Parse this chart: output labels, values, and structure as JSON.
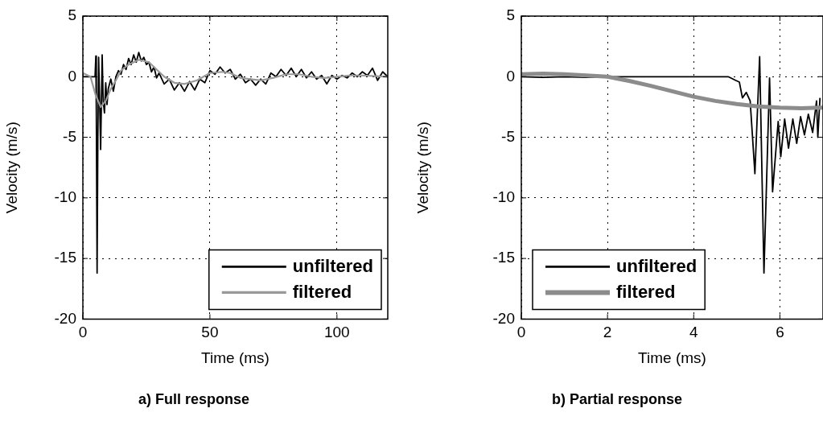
{
  "chart_data": [
    {
      "type": "line",
      "title": "a) Full response",
      "xlabel": "Time (ms)",
      "ylabel": "Velocity (m/s)",
      "xlim": [
        0,
        120
      ],
      "xticks": [
        0,
        50,
        100
      ],
      "ylim": [
        -20,
        5
      ],
      "yticks": [
        -20,
        -15,
        -10,
        -5,
        0,
        5
      ],
      "grid": true,
      "legend": "bottom right",
      "series": [
        {
          "name": "unfiltered",
          "color": "#000000",
          "x": [
            0,
            2,
            4.8,
            5.1,
            5.3,
            5.6,
            5.9,
            6.2,
            6.6,
            7,
            7.6,
            8,
            8.5,
            9,
            9.5,
            10,
            11,
            12,
            13,
            14,
            15,
            16,
            17,
            18,
            19,
            20,
            21,
            22,
            23,
            24,
            25,
            26,
            27,
            28,
            29,
            30,
            32,
            34,
            36,
            38,
            40,
            42,
            44,
            46,
            48,
            50,
            52,
            54,
            56,
            58,
            60,
            62,
            64,
            66,
            68,
            70,
            72,
            74,
            76,
            78,
            80,
            82,
            84,
            86,
            88,
            90,
            92,
            94,
            96,
            98,
            100,
            102,
            104,
            106,
            108,
            110,
            112,
            114,
            116,
            118,
            120
          ],
          "values": [
            0,
            0,
            0,
            1.7,
            -3,
            -16.2,
            -5,
            1.6,
            -2,
            -6,
            1.8,
            -2,
            -3,
            -0.5,
            -2.3,
            -1,
            -0.2,
            -1.2,
            0,
            0.5,
            0.2,
            1,
            0.6,
            1.5,
            1,
            1.8,
            1.2,
            2,
            1.3,
            1.6,
            1,
            1.2,
            0.4,
            0.8,
            -0.1,
            0.3,
            -0.6,
            -0.2,
            -1.1,
            -0.5,
            -1.2,
            -0.4,
            -1.1,
            -0.2,
            -0.5,
            0.5,
            0.2,
            0.8,
            0.3,
            0.6,
            -0.2,
            0.2,
            -0.5,
            -0.2,
            -0.7,
            -0.2,
            -0.6,
            0.3,
            0,
            0.6,
            0.1,
            0.7,
            0,
            0.6,
            -0.1,
            0.4,
            -0.2,
            0.1,
            -0.6,
            0.1,
            -0.2,
            0.1,
            -0.1,
            0.3,
            0,
            0.4,
            0.1,
            0.7,
            -0.3,
            0.4,
            0
          ]
        },
        {
          "name": "filtered",
          "color": "#999999",
          "x": [
            0,
            3,
            5,
            7,
            9,
            11,
            13,
            15,
            18,
            22,
            26,
            29,
            32,
            36,
            40,
            45,
            50,
            55,
            58,
            62,
            66,
            70,
            75,
            80,
            85,
            90,
            95,
            100,
            105,
            110,
            120
          ],
          "values": [
            0.3,
            0,
            -1.5,
            -2.5,
            -2,
            -1,
            -0.3,
            0.5,
            1,
            1.4,
            1.2,
            0.6,
            0,
            -0.5,
            -0.6,
            -0.3,
            0.3,
            0.4,
            0.3,
            -0.1,
            -0.2,
            -0.3,
            -0.1,
            0.2,
            0.2,
            0,
            -0.1,
            0,
            0.1,
            0.1,
            0
          ]
        }
      ]
    },
    {
      "type": "line",
      "title": "b) Partial response",
      "xlabel": "Time (ms)",
      "ylabel": "Velocity (m/s)",
      "xlim": [
        0,
        7
      ],
      "xticks": [
        0,
        2,
        4,
        6
      ],
      "ylim": [
        -20,
        5
      ],
      "yticks": [
        -20,
        -15,
        -10,
        -5,
        0,
        5
      ],
      "grid": true,
      "legend": "bottom left",
      "series": [
        {
          "name": "unfiltered",
          "color": "#000000",
          "x": [
            0,
            0.5,
            1,
            1.5,
            2,
            2.5,
            3,
            3.5,
            4,
            4.5,
            4.8,
            4.97,
            5.06,
            5.13,
            5.22,
            5.31,
            5.42,
            5.53,
            5.63,
            5.76,
            5.83,
            5.96,
            6.02,
            6.11,
            6.2,
            6.3,
            6.39,
            6.48,
            6.57,
            6.66,
            6.76,
            6.85,
            6.88,
            6.93
          ],
          "values": [
            0,
            -0.05,
            0,
            -0.05,
            0,
            0,
            0,
            0,
            0,
            0,
            0,
            -0.3,
            -0.45,
            -1.75,
            -1.3,
            -2,
            -8,
            1.65,
            -16.2,
            -0.1,
            -9.5,
            -3.7,
            -6.6,
            -3.5,
            -5.9,
            -3.5,
            -5.5,
            -3.3,
            -4.8,
            -3.1,
            -4.6,
            -2,
            -5,
            -1.75
          ]
        },
        {
          "name": "filtered",
          "color": "#8c8c8c",
          "x": [
            0,
            0.5,
            1,
            1.5,
            2,
            2.5,
            3,
            3.5,
            4,
            4.5,
            5,
            5.5,
            6,
            6.5,
            7
          ],
          "values": [
            0.2,
            0.25,
            0.2,
            0.1,
            0,
            -0.35,
            -0.75,
            -1.2,
            -1.65,
            -2,
            -2.25,
            -2.45,
            -2.55,
            -2.6,
            -2.55
          ]
        }
      ]
    }
  ]
}
